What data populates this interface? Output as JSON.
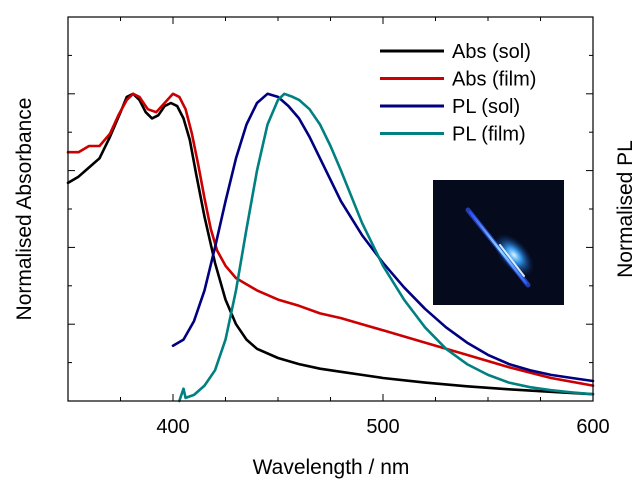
{
  "chart_data": {
    "type": "line",
    "title": "",
    "xlabel": "Wavelength / nm",
    "ylabel_left": "Normalised Absorbance",
    "ylabel_right": "Normalised PL",
    "xlim": [
      350,
      600
    ],
    "ylim": [
      0,
      1.25
    ],
    "x_ticks": [
      400,
      500,
      600
    ],
    "grid": false,
    "legend_position": "top-right",
    "inset": "photo-blue-glowing-tube",
    "series": [
      {
        "name": "Abs (sol)",
        "color": "#000000",
        "points": [
          [
            350,
            0.71
          ],
          [
            355,
            0.73
          ],
          [
            360,
            0.76
          ],
          [
            365,
            0.79
          ],
          [
            370,
            0.86
          ],
          [
            375,
            0.94
          ],
          [
            378,
            0.99
          ],
          [
            381,
            1.0
          ],
          [
            384,
            0.98
          ],
          [
            387,
            0.94
          ],
          [
            390,
            0.92
          ],
          [
            393,
            0.93
          ],
          [
            396,
            0.96
          ],
          [
            399,
            0.97
          ],
          [
            402,
            0.96
          ],
          [
            405,
            0.92
          ],
          [
            408,
            0.85
          ],
          [
            411,
            0.74
          ],
          [
            415,
            0.6
          ],
          [
            420,
            0.45
          ],
          [
            425,
            0.33
          ],
          [
            430,
            0.25
          ],
          [
            435,
            0.2
          ],
          [
            440,
            0.17
          ],
          [
            450,
            0.14
          ],
          [
            460,
            0.12
          ],
          [
            470,
            0.105
          ],
          [
            480,
            0.095
          ],
          [
            490,
            0.085
          ],
          [
            500,
            0.075
          ],
          [
            520,
            0.06
          ],
          [
            540,
            0.048
          ],
          [
            560,
            0.038
          ],
          [
            580,
            0.03
          ],
          [
            600,
            0.022
          ]
        ]
      },
      {
        "name": "Abs (film)",
        "color": "#cc0000",
        "points": [
          [
            350,
            0.81
          ],
          [
            355,
            0.81
          ],
          [
            360,
            0.83
          ],
          [
            365,
            0.83
          ],
          [
            370,
            0.87
          ],
          [
            374,
            0.93
          ],
          [
            378,
            0.98
          ],
          [
            381,
            1.0
          ],
          [
            384,
            0.99
          ],
          [
            388,
            0.95
          ],
          [
            392,
            0.94
          ],
          [
            396,
            0.97
          ],
          [
            400,
            1.0
          ],
          [
            403,
            0.99
          ],
          [
            406,
            0.95
          ],
          [
            409,
            0.87
          ],
          [
            412,
            0.77
          ],
          [
            415,
            0.66
          ],
          [
            418,
            0.56
          ],
          [
            421,
            0.49
          ],
          [
            425,
            0.44
          ],
          [
            430,
            0.4
          ],
          [
            440,
            0.36
          ],
          [
            450,
            0.33
          ],
          [
            460,
            0.31
          ],
          [
            470,
            0.285
          ],
          [
            480,
            0.27
          ],
          [
            490,
            0.25
          ],
          [
            500,
            0.23
          ],
          [
            520,
            0.19
          ],
          [
            540,
            0.15
          ],
          [
            560,
            0.11
          ],
          [
            580,
            0.075
          ],
          [
            600,
            0.05
          ]
        ]
      },
      {
        "name": "PL (sol)",
        "color": "#000080",
        "points": [
          [
            400,
            0.18
          ],
          [
            405,
            0.2
          ],
          [
            410,
            0.26
          ],
          [
            415,
            0.36
          ],
          [
            420,
            0.5
          ],
          [
            425,
            0.65
          ],
          [
            430,
            0.79
          ],
          [
            435,
            0.9
          ],
          [
            440,
            0.97
          ],
          [
            445,
            1.0
          ],
          [
            450,
            0.99
          ],
          [
            455,
            0.96
          ],
          [
            460,
            0.92
          ],
          [
            465,
            0.86
          ],
          [
            470,
            0.79
          ],
          [
            475,
            0.72
          ],
          [
            480,
            0.65
          ],
          [
            490,
            0.54
          ],
          [
            500,
            0.45
          ],
          [
            510,
            0.37
          ],
          [
            520,
            0.3
          ],
          [
            530,
            0.24
          ],
          [
            540,
            0.19
          ],
          [
            550,
            0.15
          ],
          [
            560,
            0.12
          ],
          [
            570,
            0.1
          ],
          [
            580,
            0.085
          ],
          [
            590,
            0.075
          ],
          [
            600,
            0.065
          ]
        ]
      },
      {
        "name": "PL (film)",
        "color": "#008080",
        "points": [
          [
            403,
            0.0
          ],
          [
            405,
            0.04
          ],
          [
            406,
            0.01
          ],
          [
            410,
            0.02
          ],
          [
            415,
            0.05
          ],
          [
            420,
            0.1
          ],
          [
            425,
            0.2
          ],
          [
            430,
            0.36
          ],
          [
            435,
            0.56
          ],
          [
            440,
            0.75
          ],
          [
            445,
            0.9
          ],
          [
            450,
            0.98
          ],
          [
            453,
            1.0
          ],
          [
            457,
            0.99
          ],
          [
            460,
            0.98
          ],
          [
            465,
            0.95
          ],
          [
            470,
            0.9
          ],
          [
            475,
            0.83
          ],
          [
            480,
            0.75
          ],
          [
            490,
            0.58
          ],
          [
            500,
            0.44
          ],
          [
            510,
            0.33
          ],
          [
            520,
            0.24
          ],
          [
            530,
            0.17
          ],
          [
            540,
            0.12
          ],
          [
            550,
            0.085
          ],
          [
            560,
            0.06
          ],
          [
            570,
            0.045
          ],
          [
            580,
            0.035
          ],
          [
            590,
            0.028
          ],
          [
            600,
            0.022
          ]
        ]
      }
    ]
  }
}
